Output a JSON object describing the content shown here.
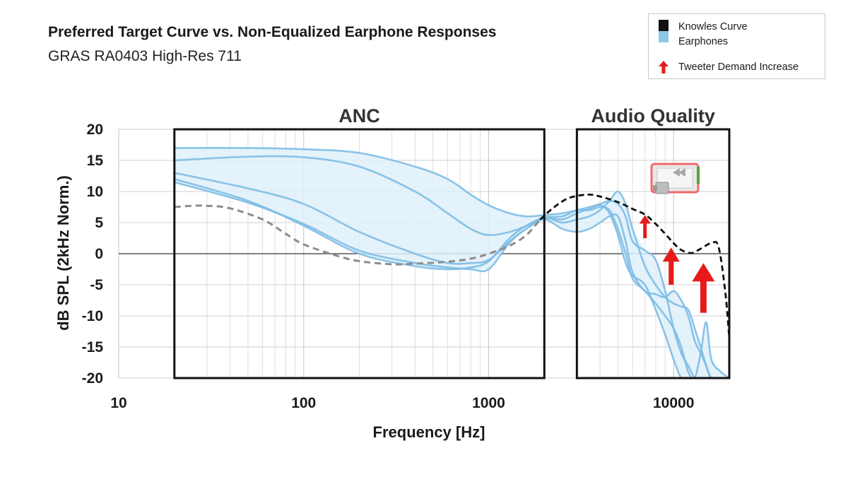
{
  "title": "Preferred Target Curve vs. Non-Equalized Earphone Responses",
  "subtitle": "GRAS RA0403 High-Res 711",
  "legend": {
    "knowles_label": "Knowles Curve",
    "earphones_label": "Earphones",
    "arrow_label": "Tweeter Demand Increase"
  },
  "colors": {
    "knowles": "#111111",
    "earphones": "#7dbde4",
    "earphone_band": "#dff0fa",
    "target": "#8c8c8c",
    "arrow": "#e61a1a"
  },
  "chart_data": {
    "type": "line",
    "title": "Preferred Target Curve vs. Non-Equalized Earphone Responses",
    "xlabel": "Frequency [Hz]",
    "ylabel": "dB SPL (2kHz Norm.)",
    "xscale": "log",
    "xlim": [
      10,
      20000
    ],
    "ylim": [
      -20,
      20
    ],
    "x_ticks": [
      10,
      100,
      1000,
      10000
    ],
    "x_tick_labels": [
      "10",
      "100",
      "1000",
      "10000"
    ],
    "y_ticks": [
      20,
      15,
      10,
      5,
      0,
      -5,
      -10,
      -15,
      -20
    ],
    "y_tick_labels": [
      "20",
      "15",
      "10",
      "5",
      "0",
      "-5",
      "-10",
      "-15",
      "-20"
    ],
    "grid": true,
    "regions": [
      {
        "label": "ANC",
        "x_range": [
          20,
          2000
        ]
      },
      {
        "label": "Audio Quality",
        "x_range": [
          3000,
          20000
        ]
      }
    ],
    "series": [
      {
        "name": "Knowles Curve",
        "style": "dashed-black",
        "points": [
          [
            1900,
            5.5
          ],
          [
            2200,
            7.2
          ],
          [
            2600,
            8.7
          ],
          [
            3000,
            9.3
          ],
          [
            3500,
            9.5
          ],
          [
            4000,
            9.2
          ],
          [
            5000,
            8.3
          ],
          [
            6000,
            7.2
          ],
          [
            7000,
            6.3
          ],
          [
            8000,
            4.8
          ],
          [
            9000,
            3.2
          ],
          [
            10000,
            1.7
          ],
          [
            11000,
            0.6
          ],
          [
            12500,
            0.1
          ],
          [
            14000,
            0.8
          ],
          [
            16000,
            1.7
          ],
          [
            17500,
            1.1
          ],
          [
            19000,
            -6
          ],
          [
            20000,
            -13.5
          ]
        ]
      },
      {
        "name": "",
        "style": "dashed-gray",
        "points": [
          [
            20,
            7.5
          ],
          [
            25,
            7.7
          ],
          [
            30,
            7.7
          ],
          [
            40,
            7.3
          ],
          [
            60,
            5.5
          ],
          [
            80,
            3.2
          ],
          [
            100,
            1.5
          ],
          [
            150,
            -0.3
          ],
          [
            200,
            -1.2
          ],
          [
            300,
            -1.7
          ],
          [
            400,
            -1.6
          ],
          [
            600,
            -1.3
          ],
          [
            800,
            -0.8
          ],
          [
            1000,
            0
          ],
          [
            1300,
            1.3
          ],
          [
            1600,
            3
          ],
          [
            1900,
            5.5
          ]
        ]
      },
      {
        "name": "Earphones",
        "style": "solid-blue",
        "x": [
          20,
          50,
          100,
          200,
          400,
          600,
          800,
          1000,
          1300,
          1600,
          2000,
          2500,
          3000,
          3500,
          4000,
          4500,
          5000,
          5500,
          6000,
          7000,
          8000,
          9000,
          10000,
          11000,
          12000,
          13000,
          14000,
          15000,
          16000,
          18000,
          20000
        ],
        "values": [
          17,
          17,
          16.8,
          16.2,
          14,
          12,
          9.5,
          7.8,
          6.5,
          6,
          6.2,
          6.5,
          7,
          7.5,
          8,
          8.5,
          8,
          6,
          2,
          0.5,
          -1,
          -6,
          -12,
          -16,
          -18,
          -20,
          -20,
          -20,
          -20,
          -20,
          -20
        ]
      },
      {
        "name": "Earphones",
        "style": "solid-blue",
        "x": [
          20,
          50,
          100,
          200,
          400,
          600,
          800,
          1000,
          1300,
          1600,
          2000,
          2500,
          3000,
          3500,
          4000,
          4500,
          5000,
          5500,
          6000,
          7000,
          8000,
          9000,
          10000,
          11000,
          12000,
          13000,
          14000,
          15000,
          16000,
          18000,
          20000
        ],
        "values": [
          15,
          15.6,
          15.5,
          14,
          10,
          6.5,
          4,
          3,
          3.5,
          4.5,
          5.8,
          5,
          5.5,
          6,
          7,
          8.5,
          10,
          8,
          4,
          -2,
          -5,
          -7,
          -8,
          -8.5,
          -9,
          -12,
          -15,
          -18,
          -20,
          -20,
          -20
        ]
      },
      {
        "name": "Earphones",
        "style": "solid-blue",
        "x": [
          20,
          50,
          100,
          200,
          400,
          600,
          800,
          1000,
          1300,
          1600,
          2000,
          2500,
          3000,
          3500,
          4000,
          4500,
          5000,
          5500,
          6000,
          7000,
          8000,
          9000,
          10000,
          11000,
          12000,
          13000,
          14000,
          15000,
          16000,
          18000,
          20000
        ],
        "values": [
          13,
          10.5,
          8,
          3.5,
          0,
          -1.5,
          -1.5,
          -1,
          2,
          4,
          5.5,
          4,
          3.5,
          4,
          5,
          6,
          6,
          2,
          -3,
          -6,
          -6.5,
          -7,
          -6,
          -7.5,
          -10,
          -14,
          -16,
          -18,
          -20,
          -20,
          -20
        ]
      },
      {
        "name": "Earphones",
        "style": "solid-blue",
        "x": [
          20,
          50,
          100,
          200,
          400,
          600,
          800,
          1000,
          1300,
          1600,
          2000,
          2500,
          3000,
          3500,
          4000,
          4500,
          5000,
          5500,
          6000,
          7000,
          8000,
          9000,
          10000,
          11000,
          12000,
          13000,
          14000,
          15000,
          16000,
          18000,
          20000
        ],
        "values": [
          12,
          8.5,
          4.5,
          0,
          -2,
          -2.5,
          -2.2,
          -1.2,
          2.5,
          4.5,
          5.8,
          6,
          7,
          7,
          7.5,
          7,
          4,
          0,
          -4,
          -6,
          -8,
          -10,
          -12,
          -15,
          -19,
          -20,
          -16,
          -11,
          -17,
          -19,
          -20
        ]
      },
      {
        "name": "Earphones",
        "style": "solid-blue",
        "x": [
          20,
          50,
          100,
          200,
          400,
          600,
          800,
          1000,
          1300,
          1600,
          2000,
          2500,
          3000,
          3500,
          4000,
          4500,
          5000,
          5500,
          6000,
          7000,
          8000,
          9000,
          10000,
          11000,
          12000,
          13000,
          14000,
          15000,
          16000,
          18000,
          20000
        ],
        "values": [
          11.5,
          8.2,
          4.8,
          0.5,
          -1.5,
          -2.2,
          -2.5,
          -2.5,
          1.8,
          4,
          5.7,
          5.5,
          6.5,
          7.2,
          7.8,
          6.5,
          3,
          -1.5,
          -3.5,
          -5,
          -9,
          -13,
          -17,
          -20,
          -20,
          -20,
          -20,
          -20,
          -20,
          -20,
          -20
        ]
      }
    ],
    "annotations": [
      {
        "type": "arrow",
        "x": 7000,
        "y_from": 2.5,
        "y_to": 6.2,
        "size": "small"
      },
      {
        "type": "arrow",
        "x": 9700,
        "y_from": -5,
        "y_to": 1,
        "size": "medium"
      },
      {
        "type": "arrow",
        "x": 14500,
        "y_from": -9.5,
        "y_to": -1.5,
        "size": "large"
      }
    ]
  }
}
